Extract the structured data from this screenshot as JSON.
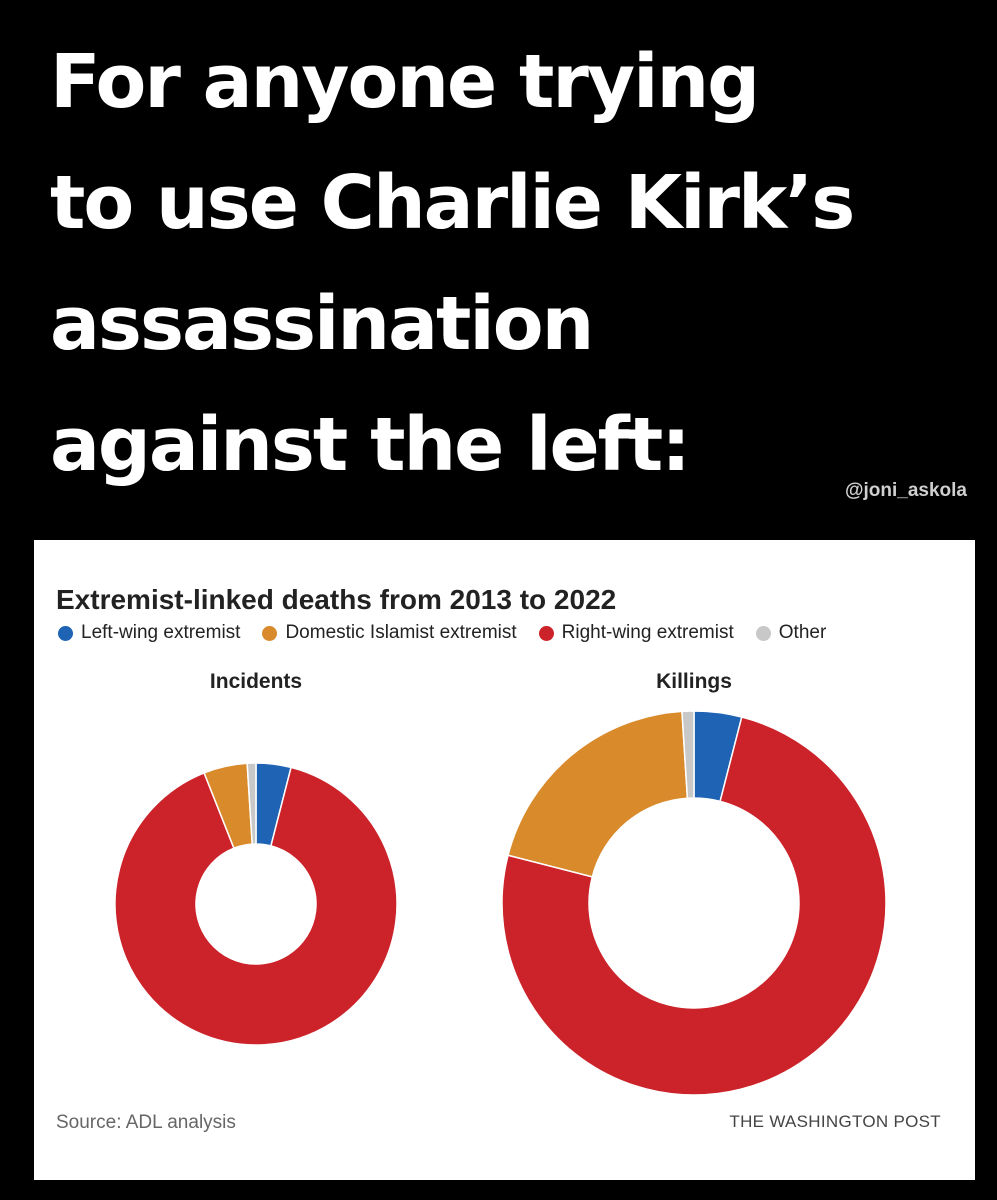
{
  "headline": {
    "lines": [
      "For anyone trying",
      "to use Charlie Kirk’s",
      "assassination",
      "against the left:"
    ]
  },
  "watermark": "@joni_askola",
  "chart_data": {
    "type": "pie",
    "title": "Extremist-linked deaths from 2013 to 2022",
    "legend_placement": "top",
    "legend": [
      {
        "key": "left",
        "label": "Left-wing extremist",
        "color": "#1f63b5"
      },
      {
        "key": "islamist",
        "label": "Domestic Islamist extremist",
        "color": "#d98a2b"
      },
      {
        "key": "right",
        "label": "Right-wing extremist",
        "color": "#cc2229"
      },
      {
        "key": "other",
        "label": "Other",
        "color": "#c8c8c8"
      }
    ],
    "charts": [
      {
        "name": "Incidents",
        "slices": [
          {
            "key": "left",
            "value": 4
          },
          {
            "key": "right",
            "value": 90
          },
          {
            "key": "islamist",
            "value": 5
          },
          {
            "key": "other",
            "value": 1
          }
        ]
      },
      {
        "name": "Killings",
        "slices": [
          {
            "key": "left",
            "value": 4
          },
          {
            "key": "right",
            "value": 75
          },
          {
            "key": "islamist",
            "value": 20
          },
          {
            "key": "other",
            "value": 1
          }
        ]
      }
    ],
    "source": "Source: ADL analysis",
    "credit": "THE WASHINGTON POST"
  }
}
